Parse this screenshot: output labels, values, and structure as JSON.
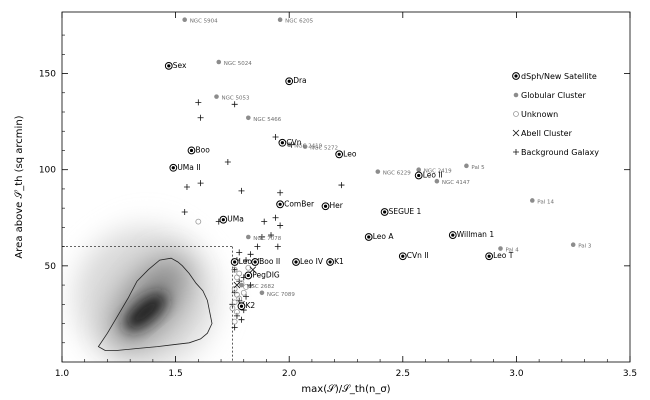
{
  "chart_data": {
    "type": "scatter",
    "title": "",
    "xlabel": "max(𝒮)/𝒮_th(n_σ)",
    "ylabel": "Area above 𝒮_th (sq arcmin)",
    "xlim": [
      1.0,
      3.5
    ],
    "ylim": [
      0,
      182
    ],
    "x_ticks": [
      "1.0",
      "1.5",
      "2.0",
      "2.5",
      "3.0",
      "3.5"
    ],
    "y_ticks": [
      "50",
      "100",
      "150"
    ],
    "grid": false,
    "legend_position": "right",
    "legend": [
      {
        "key": "dsph",
        "label": "dSph/New Satellite",
        "marker": "circled-dot"
      },
      {
        "key": "globular",
        "label": "Globular Cluster",
        "marker": "filled-circle"
      },
      {
        "key": "unknown",
        "label": "Unknown",
        "marker": "open-circle"
      },
      {
        "key": "abell",
        "label": "Abell Cluster",
        "marker": "x"
      },
      {
        "key": "galaxy",
        "label": "Background Galaxy",
        "marker": "plus"
      }
    ],
    "selection_box": {
      "x": 1.75,
      "y": 60
    },
    "density_region": {
      "label": "",
      "center": [
        1.35,
        24
      ]
    },
    "series": [
      {
        "key": "dsph",
        "points": [
          {
            "x": 1.47,
            "y": 154,
            "label": "Sex"
          },
          {
            "x": 2.0,
            "y": 146,
            "label": "Dra"
          },
          {
            "x": 1.57,
            "y": 110,
            "label": "Boo"
          },
          {
            "x": 1.97,
            "y": 114,
            "label": "CVn"
          },
          {
            "x": 2.22,
            "y": 108,
            "label": "Leo"
          },
          {
            "x": 1.49,
            "y": 101,
            "label": "UMa II"
          },
          {
            "x": 1.96,
            "y": 82,
            "label": "ComBer"
          },
          {
            "x": 2.16,
            "y": 81,
            "label": "Her"
          },
          {
            "x": 2.42,
            "y": 78,
            "label": "SEGUE 1"
          },
          {
            "x": 2.57,
            "y": 97,
            "label": "Leo II"
          },
          {
            "x": 1.71,
            "y": 74,
            "label": "UMa"
          },
          {
            "x": 2.72,
            "y": 66,
            "label": "Willman 1"
          },
          {
            "x": 2.35,
            "y": 65,
            "label": "Leo A"
          },
          {
            "x": 2.5,
            "y": 55,
            "label": "CVn II"
          },
          {
            "x": 2.88,
            "y": 55,
            "label": "Leo T"
          },
          {
            "x": 1.76,
            "y": 52,
            "label": "Leo V"
          },
          {
            "x": 1.85,
            "y": 52,
            "label": "Boo II"
          },
          {
            "x": 2.03,
            "y": 52,
            "label": "Leo IV"
          },
          {
            "x": 2.18,
            "y": 52,
            "label": "K1"
          },
          {
            "x": 1.82,
            "y": 45,
            "label": "PegDIG"
          },
          {
            "x": 1.79,
            "y": 29,
            "label": "K2"
          }
        ]
      },
      {
        "key": "globular",
        "points": [
          {
            "x": 1.54,
            "y": 178,
            "label": "NGC 5904"
          },
          {
            "x": 1.96,
            "y": 178,
            "label": "NGC 6205"
          },
          {
            "x": 1.69,
            "y": 156,
            "label": "NGC 5024"
          },
          {
            "x": 1.68,
            "y": 138,
            "label": "NGC 5053"
          },
          {
            "x": 1.82,
            "y": 127,
            "label": "NGC 5466"
          },
          {
            "x": 2.07,
            "y": 112,
            "label": "NGC 5272"
          },
          {
            "x": 2.0,
            "y": 113,
            "label": "NGC 2419"
          },
          {
            "x": 2.39,
            "y": 99,
            "label": "NGC 6229"
          },
          {
            "x": 2.57,
            "y": 100,
            "label": "NGC 2419"
          },
          {
            "x": 2.65,
            "y": 94,
            "label": "NGC 4147"
          },
          {
            "x": 2.78,
            "y": 102,
            "label": "Pal 5"
          },
          {
            "x": 3.07,
            "y": 84,
            "label": "Pal 14"
          },
          {
            "x": 1.82,
            "y": 65,
            "label": "NGC 7078"
          },
          {
            "x": 2.93,
            "y": 59,
            "label": "Pal 4"
          },
          {
            "x": 3.25,
            "y": 61,
            "label": "Pal 3"
          },
          {
            "x": 1.79,
            "y": 40,
            "label": "NGC 2682"
          },
          {
            "x": 1.88,
            "y": 36,
            "label": "NGC 7089"
          }
        ]
      },
      {
        "key": "unknown",
        "points": [
          {
            "x": 1.6,
            "y": 73
          },
          {
            "x": 1.76,
            "y": 48
          },
          {
            "x": 1.77,
            "y": 44
          },
          {
            "x": 1.79,
            "y": 41
          },
          {
            "x": 1.76,
            "y": 38
          },
          {
            "x": 1.77,
            "y": 35
          },
          {
            "x": 1.78,
            "y": 33
          },
          {
            "x": 1.76,
            "y": 31
          },
          {
            "x": 1.75,
            "y": 28
          },
          {
            "x": 1.77,
            "y": 26
          },
          {
            "x": 1.76,
            "y": 21
          },
          {
            "x": 1.8,
            "y": 36
          },
          {
            "x": 1.78,
            "y": 46
          },
          {
            "x": 1.82,
            "y": 49
          },
          {
            "x": 1.81,
            "y": 39
          },
          {
            "x": 1.79,
            "y": 30
          }
        ]
      },
      {
        "key": "abell",
        "points": [
          {
            "x": 1.79,
            "y": 30
          },
          {
            "x": 1.77,
            "y": 40
          },
          {
            "x": 1.84,
            "y": 48
          }
        ]
      },
      {
        "key": "galaxy",
        "points": [
          {
            "x": 1.6,
            "y": 135
          },
          {
            "x": 1.76,
            "y": 134
          },
          {
            "x": 1.61,
            "y": 127
          },
          {
            "x": 1.94,
            "y": 117
          },
          {
            "x": 2.01,
            "y": 113
          },
          {
            "x": 1.73,
            "y": 104
          },
          {
            "x": 1.55,
            "y": 91
          },
          {
            "x": 1.61,
            "y": 93
          },
          {
            "x": 1.79,
            "y": 89
          },
          {
            "x": 1.96,
            "y": 88
          },
          {
            "x": 2.23,
            "y": 92
          },
          {
            "x": 1.54,
            "y": 78
          },
          {
            "x": 1.94,
            "y": 75
          },
          {
            "x": 1.89,
            "y": 73
          },
          {
            "x": 1.96,
            "y": 71
          },
          {
            "x": 1.69,
            "y": 73
          },
          {
            "x": 1.88,
            "y": 65
          },
          {
            "x": 1.92,
            "y": 66
          },
          {
            "x": 1.95,
            "y": 60
          },
          {
            "x": 1.86,
            "y": 60
          },
          {
            "x": 1.83,
            "y": 56
          },
          {
            "x": 1.78,
            "y": 57
          },
          {
            "x": 1.77,
            "y": 53
          },
          {
            "x": 1.81,
            "y": 53
          },
          {
            "x": 1.76,
            "y": 48
          },
          {
            "x": 1.8,
            "y": 44
          },
          {
            "x": 1.78,
            "y": 42
          },
          {
            "x": 1.83,
            "y": 40
          },
          {
            "x": 1.76,
            "y": 36
          },
          {
            "x": 1.81,
            "y": 34
          },
          {
            "x": 1.78,
            "y": 32
          },
          {
            "x": 1.75,
            "y": 30
          },
          {
            "x": 1.8,
            "y": 27
          },
          {
            "x": 1.77,
            "y": 24
          },
          {
            "x": 1.76,
            "y": 18
          },
          {
            "x": 1.79,
            "y": 22
          }
        ]
      }
    ]
  }
}
